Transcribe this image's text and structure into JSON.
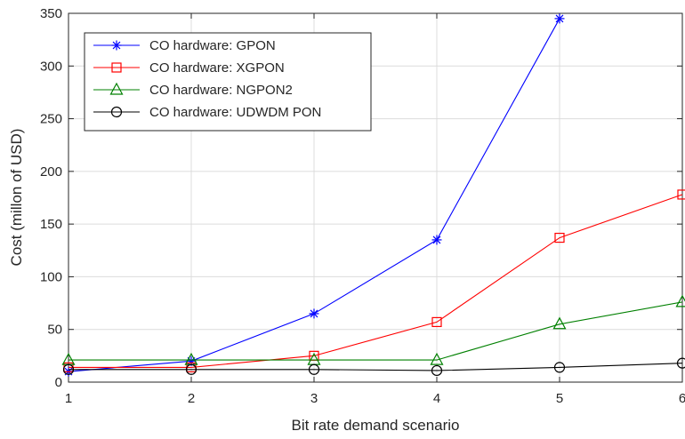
{
  "chart_data": {
    "type": "line",
    "xlabel": "Bit rate demand scenario",
    "ylabel": "Cost (millon of USD)",
    "xlim": [
      1,
      6
    ],
    "ylim": [
      0,
      350
    ],
    "x_ticks": [
      1,
      2,
      3,
      4,
      5,
      6
    ],
    "x_tick_labels": [
      "1",
      "2",
      "3",
      "4",
      "5",
      "6"
    ],
    "y_ticks": [
      0,
      50,
      100,
      150,
      200,
      250,
      300,
      350
    ],
    "y_tick_labels": [
      "0",
      "50",
      "100",
      "150",
      "200",
      "250",
      "300",
      "350"
    ],
    "grid": true,
    "legend_position": "top-left",
    "x": [
      1,
      2,
      3,
      4,
      5,
      6
    ],
    "series": [
      {
        "name": "CO hardware: GPON",
        "color": "#0000ff",
        "marker": "asterisk",
        "values": [
          10,
          20,
          65,
          135,
          345,
          null
        ]
      },
      {
        "name": "CO hardware: XGPON",
        "color": "#ff0000",
        "marker": "square",
        "values": [
          14,
          14,
          25,
          57,
          137,
          178
        ]
      },
      {
        "name": "CO hardware: NGPON2",
        "color": "#008000",
        "marker": "triangle",
        "values": [
          21,
          21,
          21,
          21,
          55,
          76
        ]
      },
      {
        "name": "CO hardware: UDWDM PON",
        "color": "#000000",
        "marker": "circle",
        "values": [
          12,
          12,
          12,
          11,
          14,
          18
        ]
      }
    ]
  }
}
